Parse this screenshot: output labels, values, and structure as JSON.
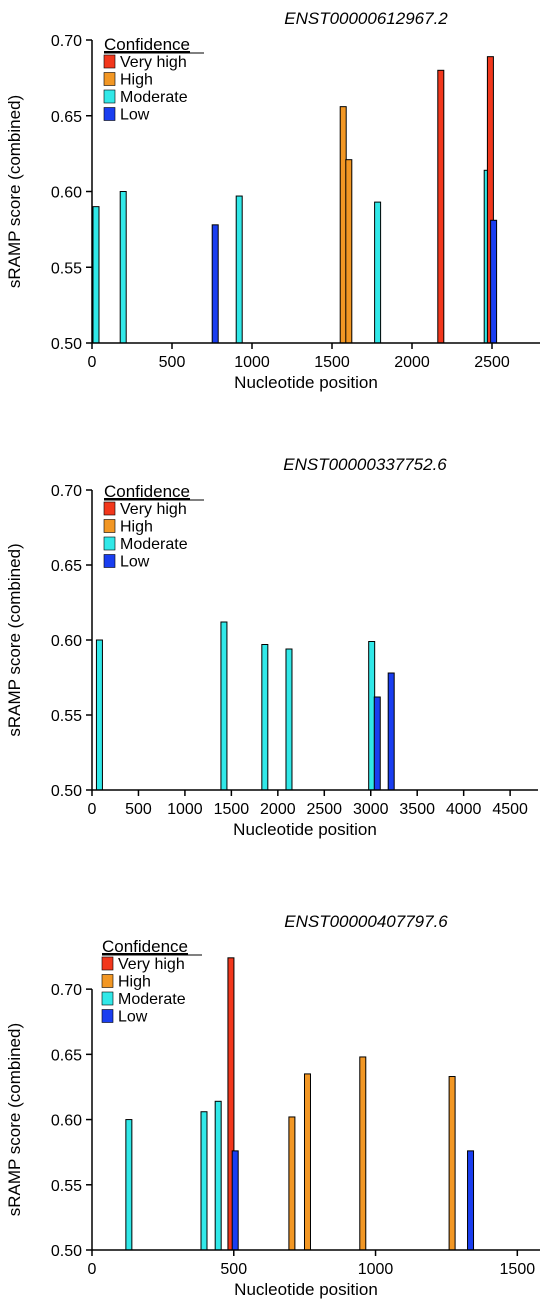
{
  "legend_colors": {
    "Very high": "#f2371c",
    "High": "#f29724",
    "Moderate": "#31e8e8",
    "Low": "#1a3ef0"
  },
  "chart_data": [
    {
      "type": "bar",
      "title": "ENST00000612967.2",
      "xlabel": "Nucleotide position",
      "ylabel": "sRAMP score (combined)",
      "xlim": [
        0,
        2800
      ],
      "ylim": [
        0.5,
        0.7
      ],
      "xticks": [
        0,
        500,
        1000,
        1500,
        2000,
        2500
      ],
      "xtick_labels": [
        "0",
        "500",
        "1000",
        "1500",
        "2000",
        "2500"
      ],
      "yticks": [
        0.5,
        0.55,
        0.6,
        0.65,
        0.7
      ],
      "ytick_labels": [
        "0.50",
        "0.55",
        "0.60",
        "0.65",
        "0.70"
      ],
      "legend_title": "Confidence",
      "legend_placement": "top-left",
      "legend": [
        "Very high",
        "High",
        "Moderate",
        "Low"
      ],
      "bars": [
        {
          "x": 25,
          "y": 0.59,
          "confidence": "Moderate"
        },
        {
          "x": 195,
          "y": 0.6,
          "confidence": "Moderate"
        },
        {
          "x": 770,
          "y": 0.578,
          "confidence": "Low"
        },
        {
          "x": 920,
          "y": 0.597,
          "confidence": "Moderate"
        },
        {
          "x": 1570,
          "y": 0.656,
          "confidence": "High"
        },
        {
          "x": 1605,
          "y": 0.621,
          "confidence": "High"
        },
        {
          "x": 1785,
          "y": 0.593,
          "confidence": "Moderate"
        },
        {
          "x": 2180,
          "y": 0.68,
          "confidence": "Very high"
        },
        {
          "x": 2470,
          "y": 0.614,
          "confidence": "Moderate"
        },
        {
          "x": 2490,
          "y": 0.689,
          "confidence": "Very high"
        },
        {
          "x": 2510,
          "y": 0.581,
          "confidence": "Low"
        }
      ]
    },
    {
      "type": "bar",
      "title": "ENST00000337752.6",
      "xlabel": "Nucleotide position",
      "ylabel": "sRAMP score (combined)",
      "xlim": [
        0,
        4800
      ],
      "ylim": [
        0.5,
        0.7
      ],
      "xticks": [
        0,
        500,
        1000,
        1500,
        2000,
        2500,
        3000,
        3500,
        4000,
        4500
      ],
      "xtick_labels": [
        "0",
        "500",
        "1000",
        "1500",
        "2000",
        "2500",
        "3000",
        "3500",
        "4000",
        "4500"
      ],
      "yticks": [
        0.5,
        0.55,
        0.6,
        0.65,
        0.7
      ],
      "ytick_labels": [
        "0.50",
        "0.55",
        "0.60",
        "0.65",
        "0.70"
      ],
      "legend_title": "Confidence",
      "legend_placement": "top-left",
      "legend": [
        "Very high",
        "High",
        "Moderate",
        "Low"
      ],
      "bars": [
        {
          "x": 80,
          "y": 0.6,
          "confidence": "Moderate"
        },
        {
          "x": 1420,
          "y": 0.612,
          "confidence": "Moderate"
        },
        {
          "x": 1860,
          "y": 0.597,
          "confidence": "Moderate"
        },
        {
          "x": 2120,
          "y": 0.594,
          "confidence": "Moderate"
        },
        {
          "x": 3010,
          "y": 0.599,
          "confidence": "Moderate"
        },
        {
          "x": 3070,
          "y": 0.562,
          "confidence": "Low"
        },
        {
          "x": 3220,
          "y": 0.578,
          "confidence": "Low"
        }
      ]
    },
    {
      "type": "bar",
      "title": "ENST00000407797.6",
      "xlabel": "Nucleotide position",
      "ylabel": "sRAMP score (combined)",
      "xlim": [
        0,
        1580
      ],
      "ylim": [
        0.5,
        0.73
      ],
      "xticks": [
        0,
        500,
        1000,
        1500
      ],
      "xtick_labels": [
        "0",
        "500",
        "1000",
        "1500"
      ],
      "yticks": [
        0.5,
        0.55,
        0.6,
        0.65,
        0.7
      ],
      "ytick_labels": [
        "0.50",
        "0.55",
        "0.60",
        "0.65",
        "0.70"
      ],
      "legend_title": "Confidence",
      "legend_placement": "top-left",
      "legend": [
        "Very high",
        "High",
        "Moderate",
        "Low"
      ],
      "bars": [
        {
          "x": 130,
          "y": 0.6,
          "confidence": "Moderate"
        },
        {
          "x": 395,
          "y": 0.606,
          "confidence": "Moderate"
        },
        {
          "x": 445,
          "y": 0.614,
          "confidence": "Moderate"
        },
        {
          "x": 490,
          "y": 0.724,
          "confidence": "Very high"
        },
        {
          "x": 505,
          "y": 0.576,
          "confidence": "Low"
        },
        {
          "x": 705,
          "y": 0.602,
          "confidence": "High"
        },
        {
          "x": 760,
          "y": 0.635,
          "confidence": "High"
        },
        {
          "x": 955,
          "y": 0.648,
          "confidence": "High"
        },
        {
          "x": 1270,
          "y": 0.633,
          "confidence": "High"
        },
        {
          "x": 1335,
          "y": 0.576,
          "confidence": "Low"
        }
      ]
    }
  ]
}
